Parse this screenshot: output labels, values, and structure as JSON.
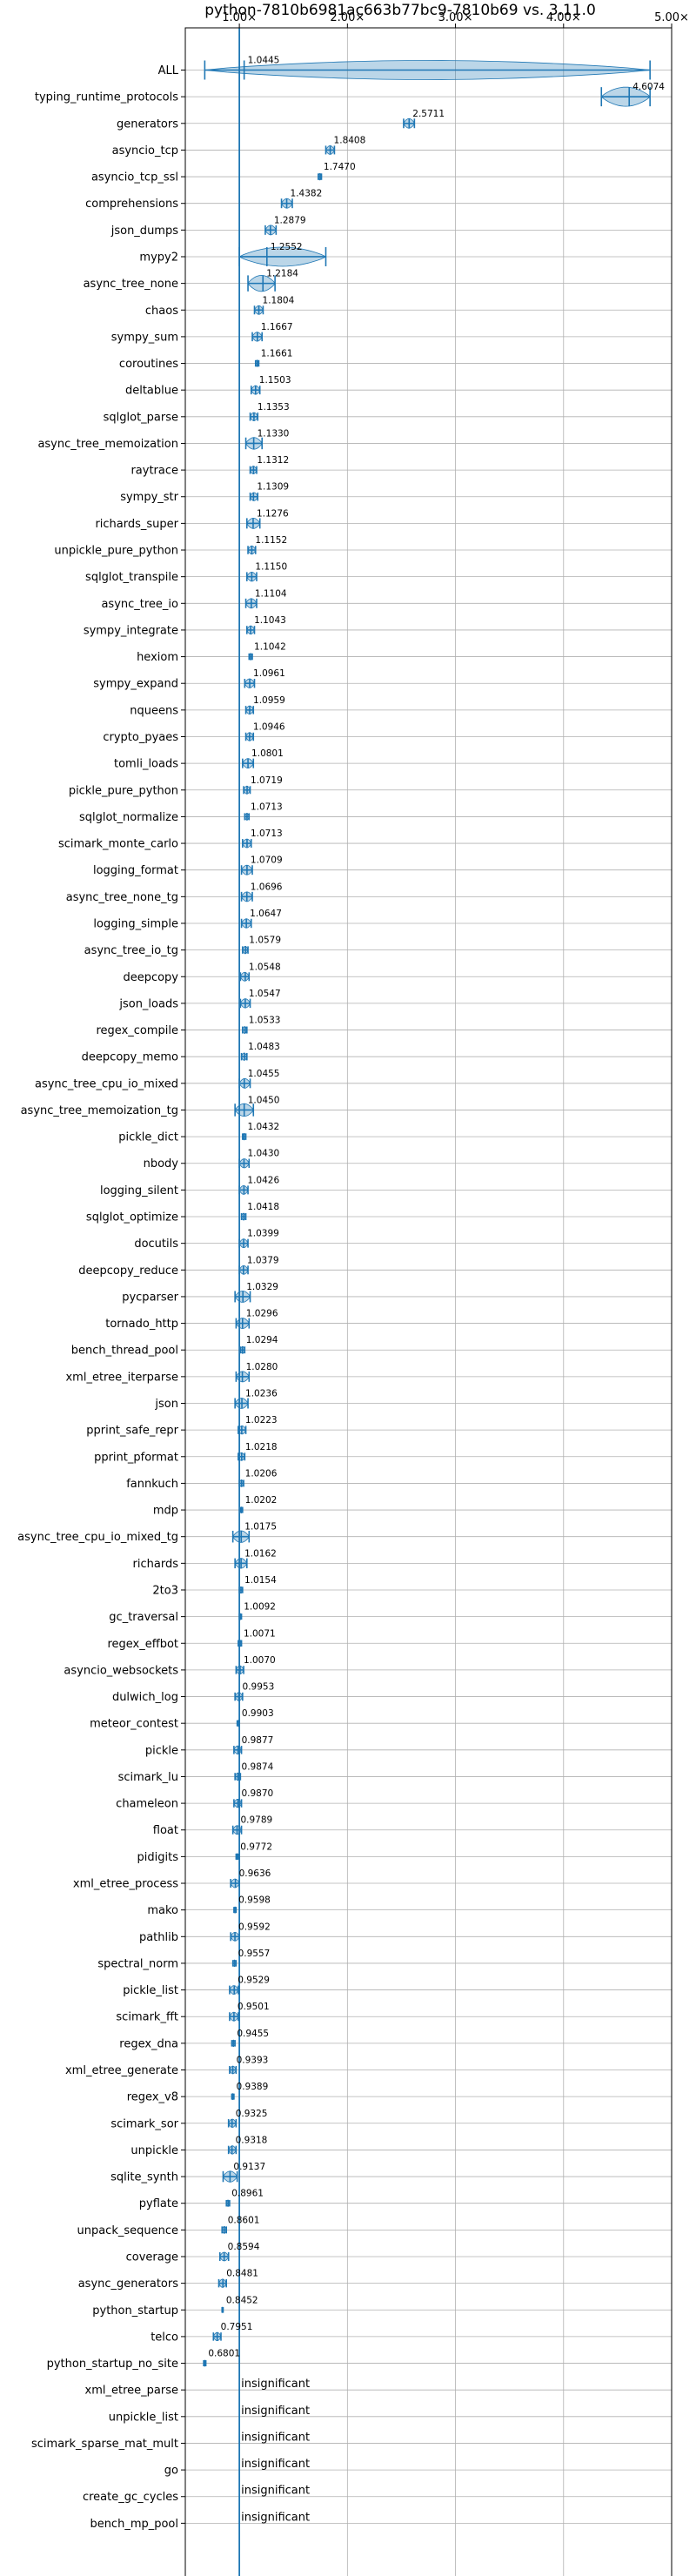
{
  "chart_data": {
    "type": "violin",
    "title": "python-7810b6981ac663b77bc9-7810b69 vs. 3.11.0",
    "xlabel": "",
    "ylabel": "",
    "xlim": [
      0.5,
      5.0
    ],
    "xticks": [
      1,
      2,
      3,
      4,
      5
    ],
    "xtick_labels": [
      "1.00×",
      "2.00×",
      "3.00×",
      "4.00×",
      "5.00×"
    ],
    "grid": true,
    "baseline": 1.0,
    "accent_color": "#1f77b4",
    "benchmarks": [
      {
        "name": "ALL",
        "value": 1.0445,
        "label": "1.0445",
        "low": 0.68,
        "high": 4.8
      },
      {
        "name": "typing_runtime_protocols",
        "value": 4.6074,
        "label": "4.6074",
        "low": 4.35,
        "high": 4.8
      },
      {
        "name": "generators",
        "value": 2.5711,
        "label": "2.5711",
        "low": 2.52,
        "high": 2.62
      },
      {
        "name": "asyncio_tcp",
        "value": 1.8408,
        "label": "1.8408",
        "low": 1.8,
        "high": 1.88
      },
      {
        "name": "asyncio_tcp_ssl",
        "value": 1.747,
        "label": "1.7470",
        "low": 1.73,
        "high": 1.76
      },
      {
        "name": "comprehensions",
        "value": 1.4382,
        "label": "1.4382",
        "low": 1.39,
        "high": 1.49
      },
      {
        "name": "json_dumps",
        "value": 1.2879,
        "label": "1.2879",
        "low": 1.24,
        "high": 1.34
      },
      {
        "name": "mypy2",
        "value": 1.2552,
        "label": "1.2552",
        "low": 1.0,
        "high": 1.8
      },
      {
        "name": "async_tree_none",
        "value": 1.2184,
        "label": "1.2184",
        "low": 1.08,
        "high": 1.33
      },
      {
        "name": "chaos",
        "value": 1.1804,
        "label": "1.1804",
        "low": 1.14,
        "high": 1.22
      },
      {
        "name": "sympy_sum",
        "value": 1.1667,
        "label": "1.1667",
        "low": 1.12,
        "high": 1.21
      },
      {
        "name": "coroutines",
        "value": 1.1661,
        "label": "1.1661",
        "low": 1.15,
        "high": 1.18
      },
      {
        "name": "deltablue",
        "value": 1.1503,
        "label": "1.1503",
        "low": 1.11,
        "high": 1.19
      },
      {
        "name": "sqlglot_parse",
        "value": 1.1353,
        "label": "1.1353",
        "low": 1.1,
        "high": 1.17
      },
      {
        "name": "async_tree_memoization",
        "value": 1.133,
        "label": "1.1330",
        "low": 1.06,
        "high": 1.21
      },
      {
        "name": "raytrace",
        "value": 1.1312,
        "label": "1.1312",
        "low": 1.1,
        "high": 1.16
      },
      {
        "name": "sympy_str",
        "value": 1.1309,
        "label": "1.1309",
        "low": 1.1,
        "high": 1.17
      },
      {
        "name": "richards_super",
        "value": 1.1276,
        "label": "1.1276",
        "low": 1.07,
        "high": 1.19
      },
      {
        "name": "unpickle_pure_python",
        "value": 1.1152,
        "label": "1.1152",
        "low": 1.08,
        "high": 1.15
      },
      {
        "name": "sqlglot_transpile",
        "value": 1.115,
        "label": "1.1150",
        "low": 1.07,
        "high": 1.16
      },
      {
        "name": "async_tree_io",
        "value": 1.1104,
        "label": "1.1104",
        "low": 1.06,
        "high": 1.16
      },
      {
        "name": "sympy_integrate",
        "value": 1.1043,
        "label": "1.1043",
        "low": 1.07,
        "high": 1.14
      },
      {
        "name": "hexiom",
        "value": 1.1042,
        "label": "1.1042",
        "low": 1.09,
        "high": 1.12
      },
      {
        "name": "sympy_expand",
        "value": 1.0961,
        "label": "1.0961",
        "low": 1.05,
        "high": 1.14
      },
      {
        "name": "nqueens",
        "value": 1.0959,
        "label": "1.0959",
        "low": 1.06,
        "high": 1.13
      },
      {
        "name": "crypto_pyaes",
        "value": 1.0946,
        "label": "1.0946",
        "low": 1.06,
        "high": 1.13
      },
      {
        "name": "tomli_loads",
        "value": 1.0801,
        "label": "1.0801",
        "low": 1.03,
        "high": 1.13
      },
      {
        "name": "pickle_pure_python",
        "value": 1.0719,
        "label": "1.0719",
        "low": 1.04,
        "high": 1.1
      },
      {
        "name": "sqlglot_normalize",
        "value": 1.0713,
        "label": "1.0713",
        "low": 1.05,
        "high": 1.09
      },
      {
        "name": "scimark_monte_carlo",
        "value": 1.0713,
        "label": "1.0713",
        "low": 1.03,
        "high": 1.11
      },
      {
        "name": "logging_format",
        "value": 1.0709,
        "label": "1.0709",
        "low": 1.02,
        "high": 1.12
      },
      {
        "name": "async_tree_none_tg",
        "value": 1.0696,
        "label": "1.0696",
        "low": 1.02,
        "high": 1.12
      },
      {
        "name": "logging_simple",
        "value": 1.0647,
        "label": "1.0647",
        "low": 1.02,
        "high": 1.11
      },
      {
        "name": "async_tree_io_tg",
        "value": 1.0579,
        "label": "1.0579",
        "low": 1.03,
        "high": 1.08
      },
      {
        "name": "deepcopy",
        "value": 1.0548,
        "label": "1.0548",
        "low": 1.01,
        "high": 1.09
      },
      {
        "name": "json_loads",
        "value": 1.0547,
        "label": "1.0547",
        "low": 1.01,
        "high": 1.1
      },
      {
        "name": "regex_compile",
        "value": 1.0533,
        "label": "1.0533",
        "low": 1.03,
        "high": 1.07
      },
      {
        "name": "deepcopy_memo",
        "value": 1.0483,
        "label": "1.0483",
        "low": 1.02,
        "high": 1.07
      },
      {
        "name": "async_tree_cpu_io_mixed",
        "value": 1.0455,
        "label": "1.0455",
        "low": 1.0,
        "high": 1.1
      },
      {
        "name": "async_tree_memoization_tg",
        "value": 1.045,
        "label": "1.0450",
        "low": 0.96,
        "high": 1.13
      },
      {
        "name": "pickle_dict",
        "value": 1.0432,
        "label": "1.0432",
        "low": 1.03,
        "high": 1.06
      },
      {
        "name": "nbody",
        "value": 1.043,
        "label": "1.0430",
        "low": 1.0,
        "high": 1.09
      },
      {
        "name": "logging_silent",
        "value": 1.0426,
        "label": "1.0426",
        "low": 1.0,
        "high": 1.08
      },
      {
        "name": "sqlglot_optimize",
        "value": 1.0418,
        "label": "1.0418",
        "low": 1.02,
        "high": 1.06
      },
      {
        "name": "docutils",
        "value": 1.0399,
        "label": "1.0399",
        "low": 1.0,
        "high": 1.08
      },
      {
        "name": "deepcopy_reduce",
        "value": 1.0379,
        "label": "1.0379",
        "low": 1.0,
        "high": 1.08
      },
      {
        "name": "pycparser",
        "value": 1.0329,
        "label": "1.0329",
        "low": 0.96,
        "high": 1.1
      },
      {
        "name": "tornado_http",
        "value": 1.0296,
        "label": "1.0296",
        "low": 0.97,
        "high": 1.09
      },
      {
        "name": "bench_thread_pool",
        "value": 1.0294,
        "label": "1.0294",
        "low": 1.01,
        "high": 1.05
      },
      {
        "name": "xml_etree_iterparse",
        "value": 1.028,
        "label": "1.0280",
        "low": 0.97,
        "high": 1.09
      },
      {
        "name": "json",
        "value": 1.0236,
        "label": "1.0236",
        "low": 0.96,
        "high": 1.08
      },
      {
        "name": "pprint_safe_repr",
        "value": 1.0223,
        "label": "1.0223",
        "low": 0.99,
        "high": 1.06
      },
      {
        "name": "pprint_pformat",
        "value": 1.0218,
        "label": "1.0218",
        "low": 0.99,
        "high": 1.05
      },
      {
        "name": "fannkuch",
        "value": 1.0206,
        "label": "1.0206",
        "low": 1.0,
        "high": 1.04
      },
      {
        "name": "mdp",
        "value": 1.0202,
        "label": "1.0202",
        "low": 1.01,
        "high": 1.03
      },
      {
        "name": "async_tree_cpu_io_mixed_tg",
        "value": 1.0175,
        "label": "1.0175",
        "low": 0.94,
        "high": 1.09
      },
      {
        "name": "richards",
        "value": 1.0162,
        "label": "1.0162",
        "low": 0.96,
        "high": 1.07
      },
      {
        "name": "2to3",
        "value": 1.0154,
        "label": "1.0154",
        "low": 1.0,
        "high": 1.03
      },
      {
        "name": "gc_traversal",
        "value": 1.0092,
        "label": "1.0092",
        "low": 1.0,
        "high": 1.02
      },
      {
        "name": "regex_effbot",
        "value": 1.0071,
        "label": "1.0071",
        "low": 0.99,
        "high": 1.02
      },
      {
        "name": "asyncio_websockets",
        "value": 1.007,
        "label": "1.0070",
        "low": 0.97,
        "high": 1.04
      },
      {
        "name": "dulwich_log",
        "value": 0.9953,
        "label": "0.9953",
        "low": 0.96,
        "high": 1.03
      },
      {
        "name": "meteor_contest",
        "value": 0.9903,
        "label": "0.9903",
        "low": 0.98,
        "high": 1.0
      },
      {
        "name": "pickle",
        "value": 0.9877,
        "label": "0.9877",
        "low": 0.95,
        "high": 1.02
      },
      {
        "name": "scimark_lu",
        "value": 0.9874,
        "label": "0.9874",
        "low": 0.96,
        "high": 1.01
      },
      {
        "name": "chameleon",
        "value": 0.987,
        "label": "0.9870",
        "low": 0.95,
        "high": 1.02
      },
      {
        "name": "float",
        "value": 0.9789,
        "label": "0.9789",
        "low": 0.94,
        "high": 1.02
      },
      {
        "name": "pidigits",
        "value": 0.9772,
        "label": "0.9772",
        "low": 0.97,
        "high": 0.99
      },
      {
        "name": "xml_etree_process",
        "value": 0.9636,
        "label": "0.9636",
        "low": 0.92,
        "high": 1.0
      },
      {
        "name": "mako",
        "value": 0.9598,
        "label": "0.9598",
        "low": 0.95,
        "high": 0.97
      },
      {
        "name": "pathlib",
        "value": 0.9592,
        "label": "0.9592",
        "low": 0.92,
        "high": 1.0
      },
      {
        "name": "spectral_norm",
        "value": 0.9557,
        "label": "0.9557",
        "low": 0.94,
        "high": 0.97
      },
      {
        "name": "pickle_list",
        "value": 0.9529,
        "label": "0.9529",
        "low": 0.91,
        "high": 0.99
      },
      {
        "name": "scimark_fft",
        "value": 0.9501,
        "label": "0.9501",
        "low": 0.91,
        "high": 0.99
      },
      {
        "name": "regex_dna",
        "value": 0.9455,
        "label": "0.9455",
        "low": 0.93,
        "high": 0.96
      },
      {
        "name": "xml_etree_generate",
        "value": 0.9393,
        "label": "0.9393",
        "low": 0.91,
        "high": 0.97
      },
      {
        "name": "regex_v8",
        "value": 0.9389,
        "label": "0.9389",
        "low": 0.93,
        "high": 0.95
      },
      {
        "name": "scimark_sor",
        "value": 0.9325,
        "label": "0.9325",
        "low": 0.9,
        "high": 0.97
      },
      {
        "name": "unpickle",
        "value": 0.9318,
        "label": "0.9318",
        "low": 0.9,
        "high": 0.97
      },
      {
        "name": "sqlite_synth",
        "value": 0.9137,
        "label": "0.9137",
        "low": 0.85,
        "high": 0.98
      },
      {
        "name": "pyflate",
        "value": 0.8961,
        "label": "0.8961",
        "low": 0.88,
        "high": 0.91
      },
      {
        "name": "unpack_sequence",
        "value": 0.8601,
        "label": "0.8601",
        "low": 0.84,
        "high": 0.88
      },
      {
        "name": "coverage",
        "value": 0.8594,
        "label": "0.8594",
        "low": 0.82,
        "high": 0.9
      },
      {
        "name": "async_generators",
        "value": 0.8481,
        "label": "0.8481",
        "low": 0.81,
        "high": 0.88
      },
      {
        "name": "python_startup",
        "value": 0.8452,
        "label": "0.8452",
        "low": 0.84,
        "high": 0.85
      },
      {
        "name": "telco",
        "value": 0.7951,
        "label": "0.7951",
        "low": 0.76,
        "high": 0.83
      },
      {
        "name": "python_startup_no_site",
        "value": 0.6801,
        "label": "0.6801",
        "low": 0.67,
        "high": 0.69
      },
      {
        "name": "xml_etree_parse",
        "value": 1.0,
        "label": "insignificant",
        "insignificant": true
      },
      {
        "name": "unpickle_list",
        "value": 1.0,
        "label": "insignificant",
        "insignificant": true
      },
      {
        "name": "scimark_sparse_mat_mult",
        "value": 1.0,
        "label": "insignificant",
        "insignificant": true
      },
      {
        "name": "go",
        "value": 1.0,
        "label": "insignificant",
        "insignificant": true
      },
      {
        "name": "create_gc_cycles",
        "value": 1.0,
        "label": "insignificant",
        "insignificant": true
      },
      {
        "name": "bench_mp_pool",
        "value": 1.0,
        "label": "insignificant",
        "insignificant": true
      }
    ]
  }
}
